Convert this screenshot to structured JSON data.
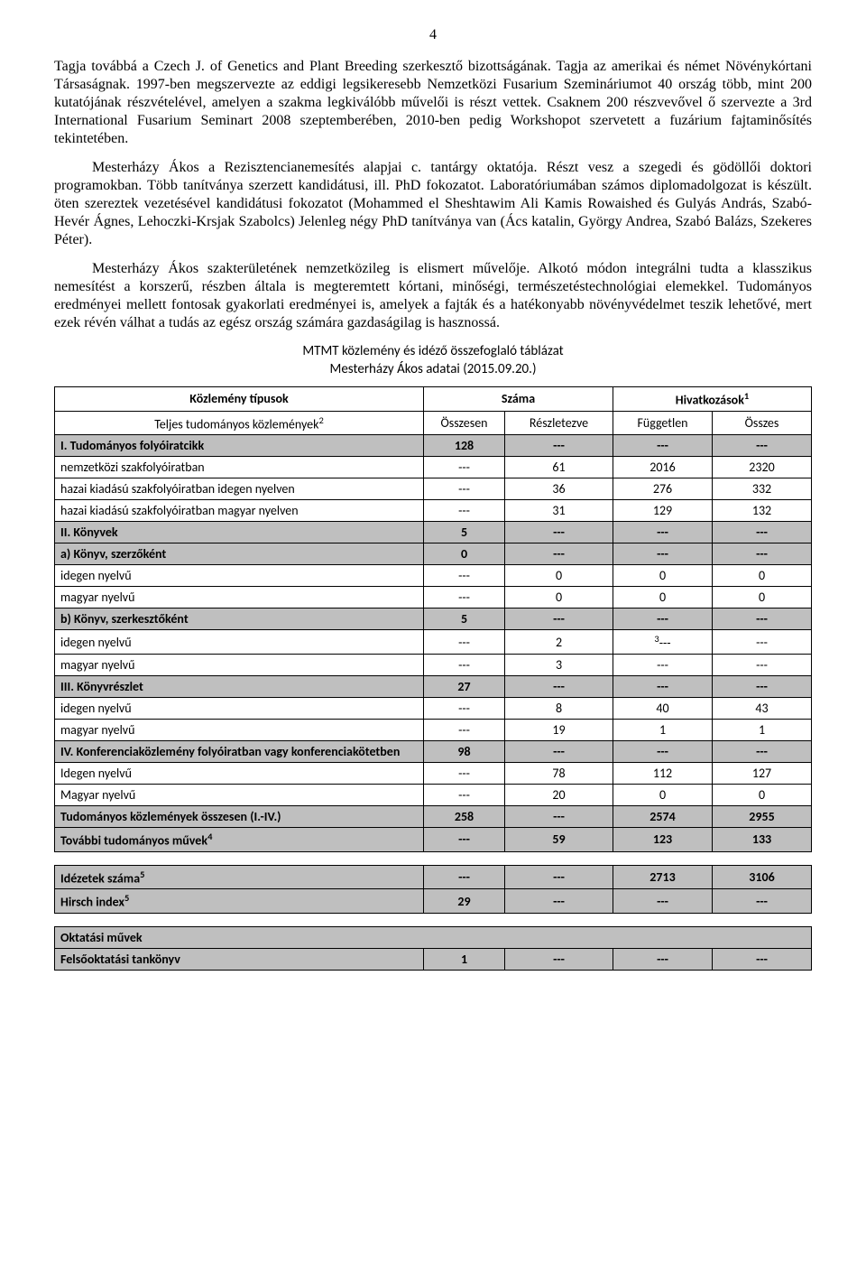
{
  "page_number": "4",
  "paragraphs": {
    "p1": "Tagja továbbá a Czech J. of Genetics and Plant Breeding szerkesztő bizottságának. Tagja az amerikai és német Növénykórtani Társaságnak. 1997-ben megszervezte az eddigi legsikeresebb Nemzetközi Fusarium Szemináriumot 40 ország több, mint 200 kutatójának részvételével, amelyen a szakma legkiválóbb művelői is részt vettek. Csaknem 200 részvevővel ő szervezte a 3rd International Fusarium Seminart 2008 szeptemberében, 2010-ben pedig Workshopot szervetett a fuzárium fajtaminősítés tekintetében.",
    "p2_indent": true,
    "p2": "Mesterházy Ákos a Rezisztencianemesítés alapjai c. tantárgy oktatója. Részt vesz a szegedi és gödöllői doktori programokban. Több tanítványa szerzett kandidátusi, ill. PhD fokozatot. Laboratóriumában számos diplomadolgozat is készült. öten szereztek vezetésével kandidátusi fokozatot (Mohammed el Sheshtawim Ali Kamis Rowaished és Gulyás András, Szabó-Hevér Ágnes, Lehoczki-Krsjak Szabolcs) Jelenleg négy PhD tanítványa van (Ács katalin, György Andrea, Szabó Balázs, Szekeres Péter).",
    "p3_indent": true,
    "p3": "Mesterházy Ákos szakterületének nemzetközileg is elismert művelője. Alkotó módon integrálni tudta a klasszikus nemesítést a korszerű, részben általa is megteremtett kórtani, minőségi, természetéstechnológiai elemekkel. Tudományos eredményei mellett fontosak gyakorlati eredményei is, amelyek a fajták és a hatékonyabb növényvédelmet teszik lehetővé, mert ezek révén válhat a tudás az egész ország számára gazdaságilag is hasznossá."
  },
  "captions": {
    "c1": "MTMT közlemény és idéző összefoglaló táblázat",
    "c2": "Mesterházy Ákos adatai (2015.09.20.)"
  },
  "main_table": {
    "header_row1": {
      "col1": "Közlemény típusok",
      "col2": "Száma",
      "col3": "Hivatkozások",
      "col3_sup": "1"
    },
    "header_row2": {
      "col1": "Teljes tudományos közlemények",
      "col1_sup": "2",
      "col2": "Összesen",
      "col3": "Részletezve",
      "col4": "Független",
      "col5": "Összes"
    },
    "rows": [
      {
        "shaded": true,
        "bold": true,
        "label": "I. Tudományos folyóiratcikk",
        "c1": "128",
        "c2": "---",
        "c3": "---",
        "c4": "---"
      },
      {
        "shaded": false,
        "bold": false,
        "label": "nemzetközi szakfolyóiratban",
        "c1": "---",
        "c2": "61",
        "c3": "2016",
        "c4": "2320"
      },
      {
        "shaded": false,
        "bold": false,
        "label": "hazai kiadású szakfolyóiratban idegen nyelven",
        "c1": "---",
        "c2": "36",
        "c3": "276",
        "c4": "332"
      },
      {
        "shaded": false,
        "bold": false,
        "label": "hazai kiadású szakfolyóiratban magyar nyelven",
        "c1": "---",
        "c2": "31",
        "c3": "129",
        "c4": "132"
      },
      {
        "shaded": true,
        "bold": true,
        "label": "II. Könyvek",
        "c1": "5",
        "c2": "---",
        "c3": "---",
        "c4": "---"
      },
      {
        "shaded": true,
        "bold": true,
        "label": "a) Könyv, szerzőként",
        "c1": "0",
        "c2": "---",
        "c3": "---",
        "c4": "---"
      },
      {
        "shaded": false,
        "bold": false,
        "label": "idegen nyelvű",
        "c1": "---",
        "c2": "0",
        "c3": "0",
        "c4": "0"
      },
      {
        "shaded": false,
        "bold": false,
        "label": "magyar nyelvű",
        "c1": "---",
        "c2": "0",
        "c3": "0",
        "c4": "0"
      },
      {
        "shaded": true,
        "bold": true,
        "label": "b) Könyv,  szerkesztőként",
        "c1": "5",
        "c2": "---",
        "c3": "---",
        "c4": "---"
      },
      {
        "shaded": false,
        "bold": false,
        "label": "idegen nyelvű",
        "c1": "---",
        "c2": "2",
        "c3_sup": "3",
        "c3": "---",
        "c4": "---"
      },
      {
        "shaded": false,
        "bold": false,
        "label": "magyar nyelvű",
        "c1": "---",
        "c2": "3",
        "c3": "---",
        "c4": "---"
      },
      {
        "shaded": true,
        "bold": true,
        "label": "III. Könyvrészlet",
        "c1": "27",
        "c2": "---",
        "c3": "---",
        "c4": "---"
      },
      {
        "shaded": false,
        "bold": false,
        "label": "idegen nyelvű",
        "c1": "---",
        "c2": "8",
        "c3": "40",
        "c4": "43"
      },
      {
        "shaded": false,
        "bold": false,
        "label": "magyar nyelvű",
        "c1": "---",
        "c2": "19",
        "c3": "1",
        "c4": "1"
      },
      {
        "shaded": true,
        "bold": true,
        "label": "IV. Konferenciaközlemény folyóiratban vagy konferenciakötetben",
        "c1": "98",
        "c2": "---",
        "c3": "---",
        "c4": "---"
      },
      {
        "shaded": false,
        "bold": false,
        "label": "Idegen nyelvű",
        "c1": "---",
        "c2": "78",
        "c3": "112",
        "c4": "127"
      },
      {
        "shaded": false,
        "bold": false,
        "label": "Magyar nyelvű",
        "c1": "---",
        "c2": "20",
        "c3": "0",
        "c4": "0"
      },
      {
        "shaded": true,
        "bold": true,
        "label": "Tudományos közlemények összesen (I.-IV.)",
        "c1": "258",
        "c2": "---",
        "c3": "2574",
        "c4": "2955"
      },
      {
        "shaded": true,
        "bold": true,
        "label": "További tudományos művek",
        "label_sup": "4",
        "c1": "---",
        "c2": "59",
        "c3": "123",
        "c4": "133"
      }
    ]
  },
  "citation_table": {
    "rows": [
      {
        "bold": true,
        "label": "Idézetek száma",
        "label_sup": "5",
        "c1": "---",
        "c2": "---",
        "c3": "2713",
        "c4": "3106"
      },
      {
        "bold": true,
        "label": "Hirsch index",
        "label_sup": "5",
        "c1": "29",
        "c2": "---",
        "c3": "---",
        "c4": "---"
      }
    ]
  },
  "edu_table": {
    "header": "Oktatási művek",
    "rows": [
      {
        "bold": true,
        "label": "Felsőoktatási tankönyv",
        "c1": "1",
        "c2": "---",
        "c3": "---",
        "c4": "---"
      }
    ]
  },
  "colors": {
    "shade": "#bfbfbf",
    "border": "#000000",
    "bg": "#ffffff",
    "text": "#000000"
  },
  "fonts": {
    "body": "Times New Roman",
    "table": "Calibri"
  }
}
